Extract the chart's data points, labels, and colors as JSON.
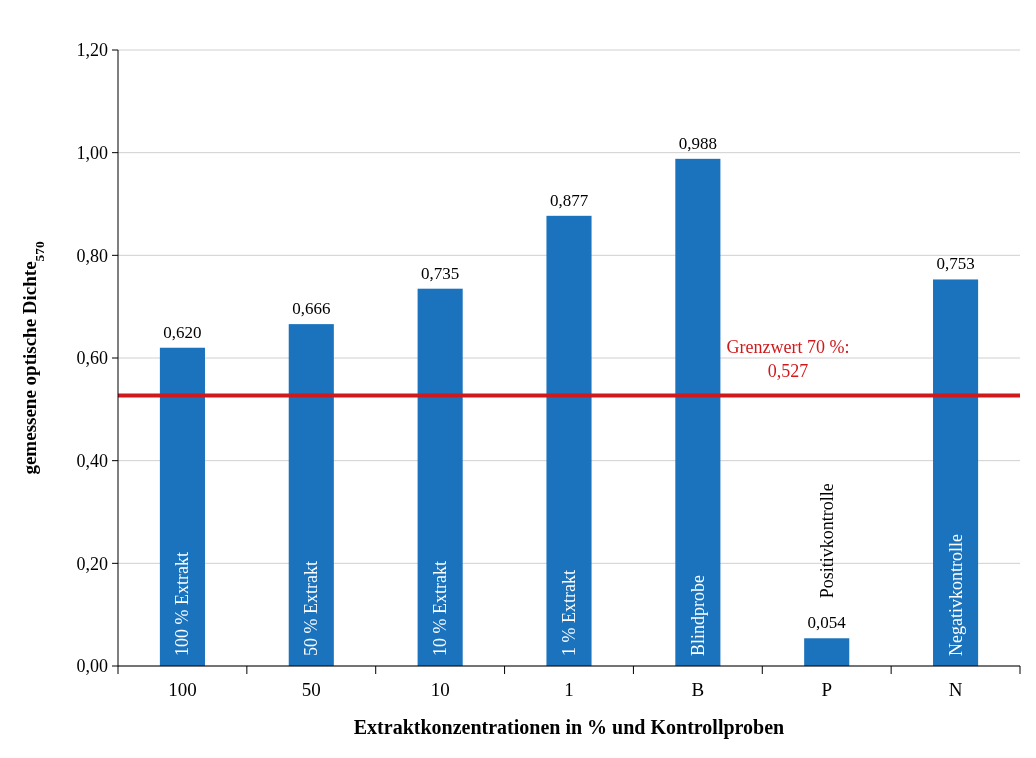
{
  "chart_data": {
    "type": "bar",
    "xlabel": "Extraktkonzentrationen in % und Kontrollproben",
    "ylabel": "gemessene optische Dichte$_{570}$",
    "categories": [
      "100",
      "50",
      "10",
      "1",
      "B",
      "P",
      "N"
    ],
    "values": [
      0.62,
      0.666,
      0.735,
      0.877,
      0.988,
      0.054,
      0.753
    ],
    "value_labels": [
      "0,620",
      "0,666",
      "0,735",
      "0,877",
      "0,988",
      "0,054",
      "0,753"
    ],
    "color": "#1b73bd",
    "ylim": [
      0,
      1.2
    ],
    "yticks": [
      {
        "value": 0,
        "label": "0,00"
      },
      {
        "value": 0.2,
        "label": "0,20"
      },
      {
        "value": 0.4,
        "label": "0,40"
      },
      {
        "value": 0.6,
        "label": "0,60"
      },
      {
        "value": 0.8,
        "label": "0,80"
      },
      {
        "value": 1.0,
        "label": "1,00"
      },
      {
        "value": 1.2,
        "label": "1,20"
      }
    ],
    "grid": "y",
    "ref_lines": [
      {
        "axis": "y",
        "value": 0.527,
        "label": "Grenzwert 70 %:\n0,527",
        "color": "#d0191c"
      }
    ],
    "annotations": [
      "100 % Extrakt",
      "50 % Extrakt",
      "10 % Extrakt",
      "1 % Extrakt",
      "Blindprobe",
      "Positivkontrolle",
      "Negativkontrolle"
    ]
  }
}
